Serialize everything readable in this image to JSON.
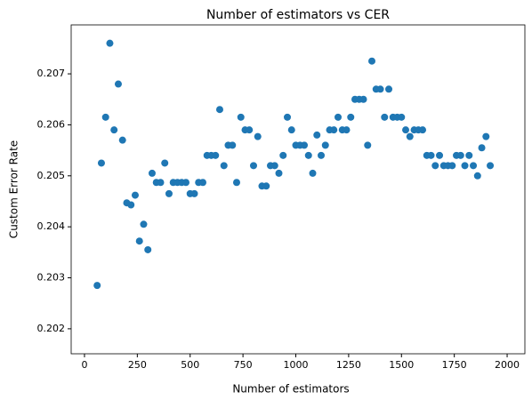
{
  "chart_data": {
    "type": "scatter",
    "title": "Number of estimators vs CER",
    "xlabel": "Number of estimators",
    "ylabel": "Custom Error Rate",
    "color": "#1f77b4",
    "x": [
      60,
      80,
      100,
      120,
      140,
      160,
      180,
      200,
      220,
      240,
      260,
      280,
      300,
      320,
      340,
      360,
      380,
      400,
      420,
      440,
      460,
      480,
      500,
      520,
      540,
      560,
      580,
      600,
      620,
      640,
      660,
      680,
      700,
      720,
      740,
      760,
      780,
      800,
      820,
      840,
      860,
      880,
      900,
      920,
      940,
      960,
      980,
      1000,
      1020,
      1040,
      1060,
      1080,
      1100,
      1120,
      1140,
      1160,
      1180,
      1200,
      1220,
      1240,
      1260,
      1280,
      1300,
      1320,
      1340,
      1360,
      1380,
      1400,
      1420,
      1440,
      1460,
      1480,
      1500,
      1520,
      1540,
      1560,
      1580,
      1600,
      1620,
      1640,
      1660,
      1680,
      1700,
      1720,
      1740,
      1760,
      1780,
      1800,
      1820,
      1840,
      1860,
      1880,
      1900,
      1920
    ],
    "values": [
      0.20285,
      0.20525,
      0.20615,
      0.2076,
      0.2059,
      0.2068,
      0.2057,
      0.20447,
      0.20443,
      0.20462,
      0.20372,
      0.20405,
      0.20355,
      0.20505,
      0.20487,
      0.20487,
      0.20525,
      0.20465,
      0.20487,
      0.20487,
      0.20487,
      0.20487,
      0.20465,
      0.20465,
      0.20487,
      0.20487,
      0.2054,
      0.2054,
      0.2054,
      0.2063,
      0.2052,
      0.2056,
      0.2056,
      0.20487,
      0.20615,
      0.2059,
      0.2059,
      0.2052,
      0.20577,
      0.2048,
      0.2048,
      0.2052,
      0.2052,
      0.20505,
      0.2054,
      0.20615,
      0.2059,
      0.2056,
      0.2056,
      0.2056,
      0.2054,
      0.20505,
      0.2058,
      0.2054,
      0.2056,
      0.2059,
      0.2059,
      0.20615,
      0.2059,
      0.2059,
      0.20615,
      0.2065,
      0.2065,
      0.2065,
      0.2056,
      0.20725,
      0.2067,
      0.2067,
      0.20615,
      0.2067,
      0.20615,
      0.20615,
      0.20615,
      0.2059,
      0.20577,
      0.2059,
      0.2059,
      0.2059,
      0.2054,
      0.2054,
      0.2052,
      0.2054,
      0.2052,
      0.2052,
      0.2052,
      0.2054,
      0.2054,
      0.2052,
      0.2054,
      0.2052,
      0.205,
      0.20555,
      0.20577,
      0.2052
    ],
    "xlim": [
      -63,
      2084
    ],
    "xticks": [
      0,
      250,
      500,
      750,
      1000,
      1250,
      1500,
      1750,
      2000
    ],
    "ylim": [
      0.20151,
      0.20796
    ],
    "yticks": [
      0.202,
      0.203,
      0.204,
      0.205,
      0.206,
      0.207
    ]
  }
}
